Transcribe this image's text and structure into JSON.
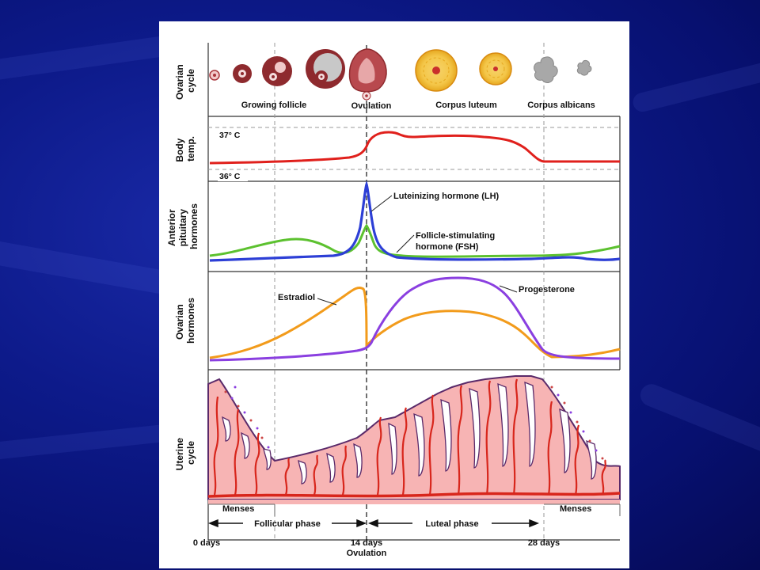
{
  "rows": {
    "ovarian_cycle": "Ovarian\ncycle",
    "body_temp": "Body\ntemp.",
    "anterior_pituitary": "Anterior\npituitary\nhormones",
    "ovarian_hormones": "Ovarian\nhormones",
    "uterine_cycle": "Uterine\ncycle"
  },
  "ovarian_stages": {
    "growing_follicle": "Growing follicle",
    "ovulation": "Ovulation",
    "corpus_luteum": "Corpus luteum",
    "corpus_albicans": "Corpus albicans"
  },
  "temperature": {
    "high": "37° C",
    "low": "36° C"
  },
  "hormones": {
    "lh": "Luteinizing hormone (LH)",
    "fsh_line1": "Follicle-stimulating",
    "fsh_line2": "hormone (FSH)",
    "estradiol": "Estradiol",
    "progesterone": "Progesterone"
  },
  "phases": {
    "menses_left": "Menses",
    "menses_right": "Menses",
    "follicular": "Follicular phase",
    "luteal": "Luteal phase"
  },
  "days": {
    "day0": "0 days",
    "day14": "14 days",
    "day14_sub": "Ovulation",
    "day28": "28 days"
  },
  "colors": {
    "temperature": "#e0201c",
    "lh": "#2d3fd6",
    "fsh": "#5cc12f",
    "estradiol": "#f29b1b",
    "progesterone": "#8a3fe0",
    "endometrium": "#f7b4b4",
    "vessel": "#d8261c",
    "background": "#0d1a8a"
  }
}
